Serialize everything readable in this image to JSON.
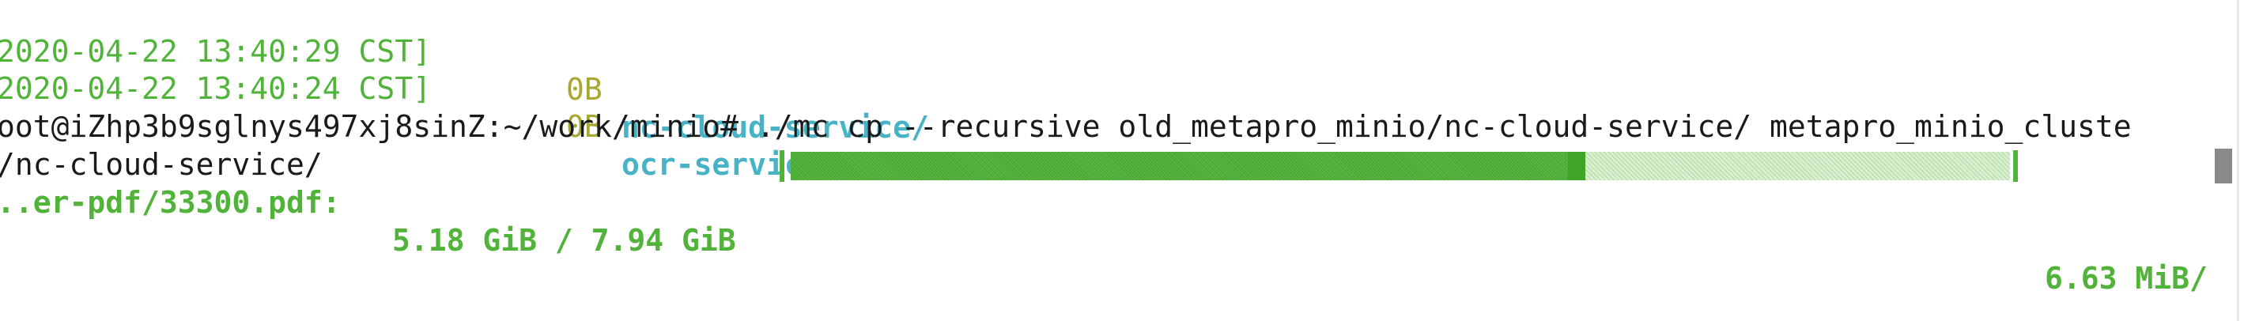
{
  "terminal": {
    "lines": [
      {
        "timestamp": "2020-04-22 13:40:29 CST]",
        "size": "0B",
        "name": "nc-cloud-service/"
      },
      {
        "timestamp": "2020-04-22 13:40:24 CST]",
        "size": "0B",
        "name": "ocr-service/"
      }
    ],
    "command_line": "oot@iZhp3b9sglnys497xj8sinZ:~/work/minio# ./mc cp --recursive old_metapro_minio/nc-cloud-service/ metapro_minio_cluste",
    "command_wrap": "/nc-cloud-service/",
    "progress": {
      "file": "..er-pdf/33300.pdf:",
      "transferred": "5.18 GiB / 7.94 GiB",
      "fraction": 0.652,
      "speed": "6.63 MiB/"
    }
  },
  "colors": {
    "prompt_text": "#1a1a1a",
    "timestamp": "#52b33a",
    "size": "#a8a830",
    "directory": "#48b3c6",
    "progress": "#52b33a",
    "background": "#ffffff"
  }
}
